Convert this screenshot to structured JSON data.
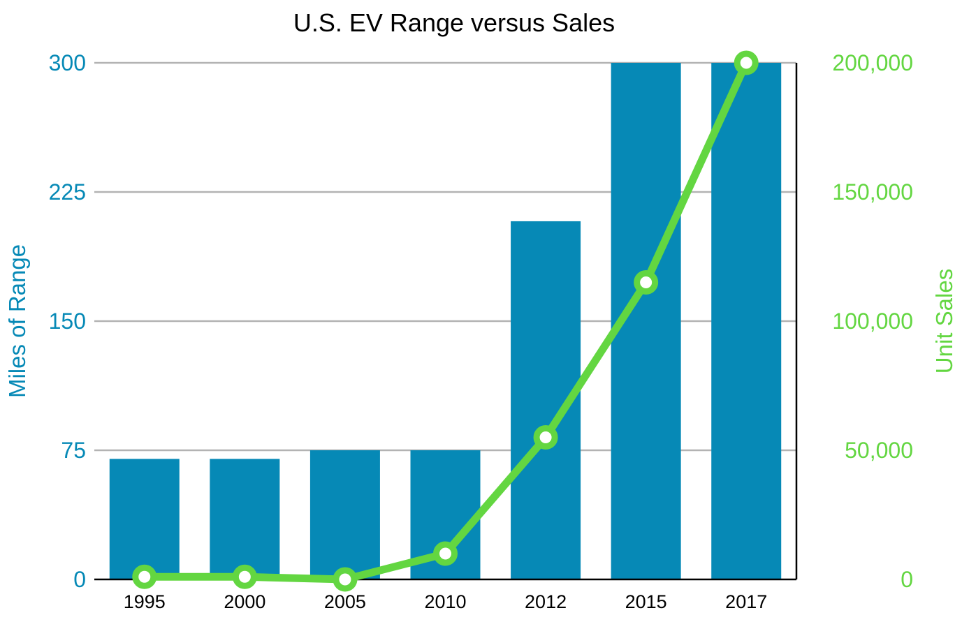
{
  "chart_data": {
    "type": "bar",
    "title": "U.S. EV Range versus Sales",
    "categories": [
      "1995",
      "2000",
      "2005",
      "2010",
      "2012",
      "2015",
      "2017"
    ],
    "series": [
      {
        "name": "Miles of Range",
        "type": "bar",
        "axis": "left",
        "color": "#0689b6",
        "values": [
          70,
          70,
          75,
          75,
          208,
          300,
          300
        ]
      },
      {
        "name": "Unit Sales",
        "type": "line",
        "axis": "right",
        "color": "#63d641",
        "values": [
          1000,
          1000,
          0,
          10000,
          55000,
          115000,
          200000
        ]
      }
    ],
    "ylabel_left": "Miles of Range",
    "ylabel_right": "Unit Sales",
    "ylim_left": [
      0,
      300
    ],
    "ylim_right": [
      0,
      200000
    ],
    "yticks_left": [
      "0",
      "75",
      "150",
      "225",
      "300"
    ],
    "yticks_left_values": [
      0,
      75,
      150,
      225,
      300
    ],
    "yticks_right": [
      "0",
      "50,000",
      "100,000",
      "150,000",
      "200,000"
    ],
    "yticks_right_values": [
      0,
      50000,
      100000,
      150000,
      200000
    ],
    "grid": true,
    "colors": {
      "left_axis": "#0689b6",
      "right_axis": "#63d641",
      "gridline": "#b3b3b3",
      "axis_line": "#000000"
    }
  }
}
